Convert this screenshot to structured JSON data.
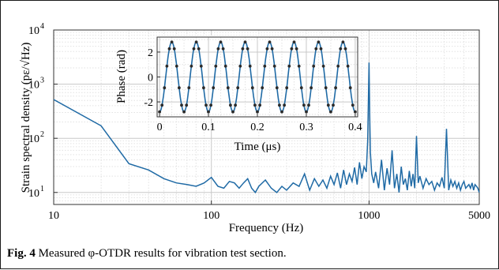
{
  "caption": {
    "label": "Fig. 4",
    "text": "Measured φ-OTDR results for vibration test section."
  },
  "chart_data": [
    {
      "type": "line",
      "xlabel": "Frequency (Hz)",
      "ylabel": "Strain spectral density (pε/√Hz)",
      "xscale": "log",
      "yscale": "log",
      "xlim": [
        10,
        5000
      ],
      "ylim": [
        6,
        10000
      ],
      "grid": true,
      "line_color": "#1f6aa5",
      "x_ticks": [
        {
          "value": 10,
          "label": "10"
        },
        {
          "value": 100,
          "label": "100"
        },
        {
          "value": 1000,
          "label": "1000"
        },
        {
          "value": 5000,
          "label": "5000"
        }
      ],
      "y_ticks": [
        {
          "value": 10,
          "base": "10",
          "exp": "1"
        },
        {
          "value": 100,
          "base": "10",
          "exp": "2"
        },
        {
          "value": 1000,
          "base": "10",
          "exp": "3"
        },
        {
          "value": 10000,
          "base": "10",
          "exp": "4"
        }
      ],
      "series": [
        {
          "x": [
            10,
            20,
            30,
            40,
            50,
            60,
            70,
            80,
            90,
            100,
            110,
            120,
            130,
            140,
            150,
            160,
            170,
            180,
            190,
            200,
            220,
            240,
            260,
            280,
            300,
            330,
            360,
            390,
            420,
            450,
            480,
            510,
            540,
            570,
            600,
            630,
            660,
            690,
            720,
            750,
            780,
            810,
            840,
            870,
            900,
            930,
            960,
            980,
            1000,
            1010,
            1020,
            1040,
            1070,
            1100,
            1150,
            1200,
            1250,
            1300,
            1350,
            1400,
            1450,
            1500,
            1550,
            1600,
            1650,
            1700,
            1750,
            1800,
            1850,
            1900,
            1950,
            2000,
            2050,
            2100,
            2200,
            2300,
            2400,
            2500,
            2600,
            2700,
            2800,
            2900,
            3000,
            3100,
            3200,
            3300,
            3400,
            3500,
            3600,
            3700,
            3800,
            3900,
            4000,
            4100,
            4200,
            4300,
            4400,
            4500,
            4600,
            4700,
            4800,
            4900,
            5000
          ],
          "y": [
            520,
            170,
            34,
            26,
            18,
            15,
            14,
            13,
            15,
            19,
            13,
            12,
            16,
            15,
            12,
            15,
            18,
            12,
            10,
            13,
            17,
            12,
            10,
            13,
            11,
            15,
            13,
            22,
            11,
            18,
            13,
            17,
            12,
            20,
            14,
            23,
            12,
            26,
            14,
            22,
            16,
            29,
            14,
            36,
            18,
            30,
            24,
            90,
            2500,
            250,
            55,
            22,
            15,
            24,
            12,
            40,
            11,
            28,
            14,
            60,
            12,
            22,
            10,
            30,
            14,
            18,
            11,
            25,
            13,
            22,
            12,
            110,
            15,
            20,
            12,
            18,
            14,
            16,
            11,
            15,
            13,
            19,
            12,
            150,
            11,
            17,
            13,
            16,
            12,
            15,
            11,
            14,
            16,
            12,
            13,
            14,
            12,
            15,
            11,
            14,
            13,
            12,
            10
          ]
        }
      ]
    },
    {
      "type": "line",
      "xlabel": "Time (μs)",
      "ylabel": "Phase (rad)",
      "xlim": [
        -0.005,
        0.405
      ],
      "ylim": [
        -3.2,
        3.2
      ],
      "grid": true,
      "line_color": "#1f6aa5",
      "marker_color": "#2b2b2b",
      "sine": {
        "amplitude": 2.8,
        "period": 0.05,
        "phase_offset": -1.5708,
        "x_start": 0.0,
        "x_end": 0.4
      },
      "markers_per_period": 10,
      "x_ticks": [
        {
          "value": 0,
          "label": "0"
        },
        {
          "value": 0.1,
          "label": "0.1"
        },
        {
          "value": 0.2,
          "label": "0.2"
        },
        {
          "value": 0.3,
          "label": "0.3"
        },
        {
          "value": 0.4,
          "label": "0.4"
        }
      ],
      "y_ticks": [
        {
          "value": -2,
          "label": "-2"
        },
        {
          "value": 0,
          "label": "0"
        },
        {
          "value": 2,
          "label": "2"
        }
      ]
    }
  ]
}
